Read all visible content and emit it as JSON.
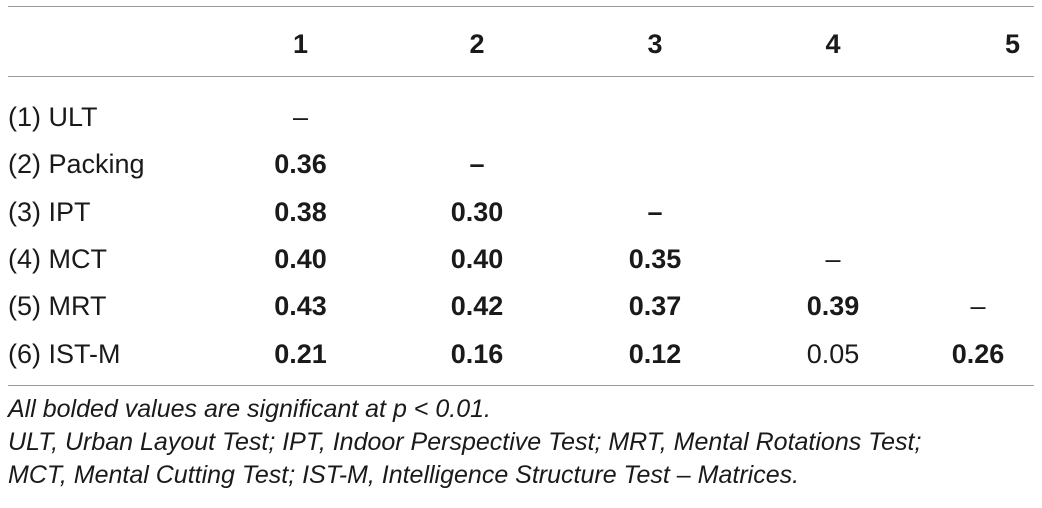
{
  "table": {
    "columns": [
      "",
      "1",
      "2",
      "3",
      "4",
      "5"
    ],
    "rows": [
      {
        "label": "(1) ULT",
        "cells": [
          {
            "v": "–",
            "bold": false
          },
          {
            "v": "",
            "bold": false
          },
          {
            "v": "",
            "bold": false
          },
          {
            "v": "",
            "bold": false
          },
          {
            "v": "",
            "bold": false
          }
        ]
      },
      {
        "label": "(2) Packing",
        "cells": [
          {
            "v": "0.36",
            "bold": true
          },
          {
            "v": "–",
            "bold": true
          },
          {
            "v": "",
            "bold": false
          },
          {
            "v": "",
            "bold": false
          },
          {
            "v": "",
            "bold": false
          }
        ]
      },
      {
        "label": "(3) IPT",
        "cells": [
          {
            "v": "0.38",
            "bold": true
          },
          {
            "v": "0.30",
            "bold": true
          },
          {
            "v": "–",
            "bold": true
          },
          {
            "v": "",
            "bold": false
          },
          {
            "v": "",
            "bold": false
          }
        ]
      },
      {
        "label": "(4) MCT",
        "cells": [
          {
            "v": "0.40",
            "bold": true
          },
          {
            "v": "0.40",
            "bold": true
          },
          {
            "v": "0.35",
            "bold": true
          },
          {
            "v": "–",
            "bold": false
          },
          {
            "v": "",
            "bold": false
          }
        ]
      },
      {
        "label": "(5) MRT",
        "cells": [
          {
            "v": "0.43",
            "bold": true
          },
          {
            "v": "0.42",
            "bold": true
          },
          {
            "v": "0.37",
            "bold": true
          },
          {
            "v": "0.39",
            "bold": true
          },
          {
            "v": "–",
            "bold": false
          }
        ]
      },
      {
        "label": "(6) IST-M",
        "cells": [
          {
            "v": "0.21",
            "bold": true
          },
          {
            "v": "0.16",
            "bold": true
          },
          {
            "v": "0.12",
            "bold": true
          },
          {
            "v": "0.05",
            "bold": false
          },
          {
            "v": "0.26",
            "bold": true
          }
        ]
      }
    ]
  },
  "notes": {
    "line1": "All bolded values are significant at p < 0.01.",
    "line2": "ULT, Urban Layout Test; IPT, Indoor Perspective Test; MRT, Mental Rotations Test;",
    "line3": "MCT, Mental Cutting Test; IST-M, Intelligence Structure Test – Matrices."
  }
}
